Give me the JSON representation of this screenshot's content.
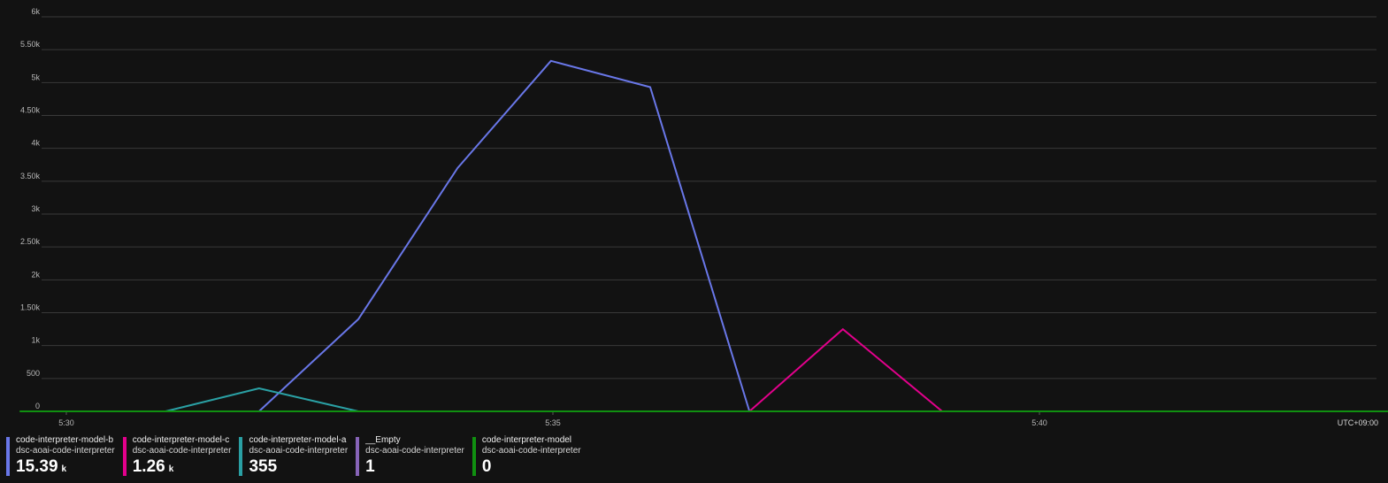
{
  "chart_data": {
    "type": "line",
    "x": [
      "5:29.5",
      "5:30",
      "5:31",
      "5:32",
      "5:33",
      "5:34",
      "5:35",
      "5:36",
      "5:37",
      "5:38",
      "5:39",
      "5:40",
      "5:41",
      "5:42",
      "5:43",
      "5:44"
    ],
    "x_ticks": [
      "5:30",
      "5:35",
      "5:40"
    ],
    "y_ticks": [
      "0",
      "500",
      "1k",
      "1.50k",
      "2k",
      "2.50k",
      "3k",
      "3.50k",
      "4k",
      "4.50k",
      "5k",
      "5.50k",
      "6k"
    ],
    "ylim": [
      0,
      6000
    ],
    "timezone_label": "UTC+09:00",
    "grid": true,
    "series": [
      {
        "name": "code-interpreter-model-b",
        "color": "#6977e8",
        "points": [
          [
            5.533,
            0
          ],
          [
            5.55,
            1400
          ],
          [
            5.567,
            3700
          ],
          [
            5.583,
            5330
          ],
          [
            5.6,
            4930
          ],
          [
            5.617,
            0
          ]
        ]
      },
      {
        "name": "code-interpreter-model-c",
        "color": "#e3008c",
        "points": [
          [
            5.617,
            0
          ],
          [
            5.633,
            1250
          ],
          [
            5.65,
            0
          ]
        ]
      },
      {
        "name": "code-interpreter-model-a",
        "color": "#2aa0a4",
        "points": [
          [
            5.517,
            0
          ],
          [
            5.533,
            350
          ],
          [
            5.55,
            0
          ]
        ]
      },
      {
        "name": "code-interpreter-model",
        "color": "#109010",
        "points": [
          [
            5.492,
            0
          ],
          [
            5.733,
            0
          ]
        ]
      }
    ]
  },
  "legend": [
    {
      "name": "code-interpreter-model-b",
      "resource": "dsc-aoai-code-interpreter",
      "value": "15.39",
      "unit": "k",
      "color": "#6977e8"
    },
    {
      "name": "code-interpreter-model-c",
      "resource": "dsc-aoai-code-interpreter",
      "value": "1.26",
      "unit": "k",
      "color": "#e3008c"
    },
    {
      "name": "code-interpreter-model-a",
      "resource": "dsc-aoai-code-interpreter",
      "value": "355",
      "unit": "",
      "color": "#2aa0a4"
    },
    {
      "name": "__Empty",
      "resource": "dsc-aoai-code-interpreter",
      "value": "1",
      "unit": "",
      "color": "#8764b8"
    },
    {
      "name": "code-interpreter-model",
      "resource": "dsc-aoai-code-interpreter",
      "value": "0",
      "unit": "",
      "color": "#109010"
    }
  ]
}
